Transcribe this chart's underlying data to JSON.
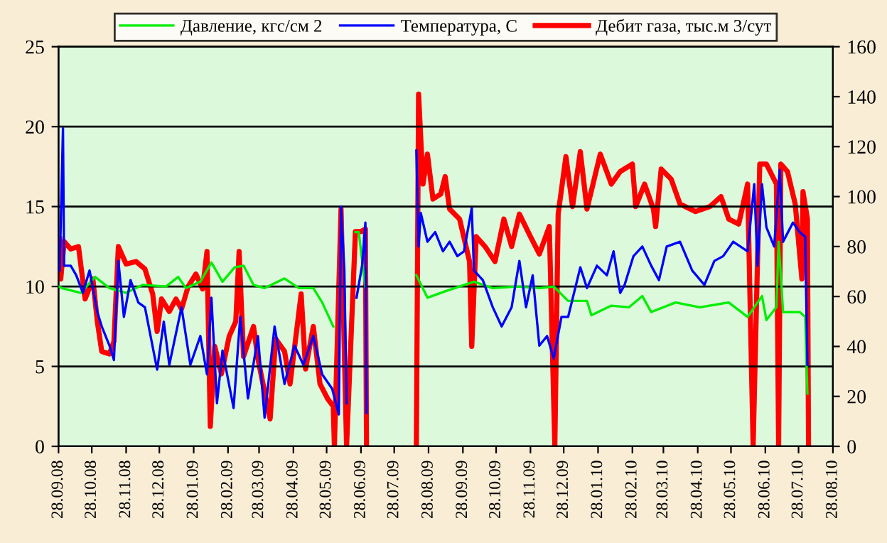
{
  "chart_data": {
    "type": "line",
    "legend": "top",
    "grid": "y",
    "marker": "none",
    "line_style": "solid",
    "xlim": [
      "2008-09-28",
      "2010-08-28"
    ],
    "xticks": [
      {
        "value": "2008-09-28",
        "label": "28.09.08"
      },
      {
        "value": "2008-10-28",
        "label": "28.10.08"
      },
      {
        "value": "2008-11-28",
        "label": "28.11.08"
      },
      {
        "value": "2008-12-28",
        "label": "28.12.08"
      },
      {
        "value": "2009-01-28",
        "label": "28.01.09"
      },
      {
        "value": "2009-02-28",
        "label": "28.02.09"
      },
      {
        "value": "2009-03-28",
        "label": "28.03.09"
      },
      {
        "value": "2009-04-28",
        "label": "28.04.09"
      },
      {
        "value": "2009-05-28",
        "label": "28.05.09"
      },
      {
        "value": "2009-06-28",
        "label": "28.06.09"
      },
      {
        "value": "2009-07-28",
        "label": "28.07.09"
      },
      {
        "value": "2009-08-28",
        "label": "28.08.09"
      },
      {
        "value": "2009-09-28",
        "label": "28.09.09"
      },
      {
        "value": "2009-10-28",
        "label": "28.10.09"
      },
      {
        "value": "2009-11-28",
        "label": "28.11.09"
      },
      {
        "value": "2009-12-28",
        "label": "28.12.09"
      },
      {
        "value": "2010-01-28",
        "label": "28.01.10"
      },
      {
        "value": "2010-02-28",
        "label": "28.02.10"
      },
      {
        "value": "2010-03-28",
        "label": "28.03.10"
      },
      {
        "value": "2010-04-28",
        "label": "28.04.10"
      },
      {
        "value": "2010-05-28",
        "label": "28.05.10"
      },
      {
        "value": "2010-06-28",
        "label": "28.06.10"
      },
      {
        "value": "2010-07-28",
        "label": "28.07.10"
      },
      {
        "value": "2010-08-28",
        "label": "28.08.10"
      }
    ],
    "ylim": [
      0,
      25
    ],
    "yticks": [
      0,
      5,
      10,
      15,
      20,
      25
    ],
    "y2lim": [
      0,
      160
    ],
    "y2ticks": [
      0,
      20,
      40,
      60,
      80,
      100,
      120,
      140,
      160
    ],
    "series": [
      {
        "name": "Давление, кгс/см 2",
        "color": "#00ee00",
        "x": [
          "2008-09-28",
          "2008-10-01",
          "2008-10-18",
          "2008-10-31",
          "2008-11-13",
          "2008-11-28",
          "2008-12-13",
          "2009-01-03",
          "2009-01-14",
          "2009-01-21",
          "2009-02-03",
          "2009-02-13",
          "2009-02-23",
          "2009-03-06",
          "2009-03-14",
          "2009-03-23",
          "2009-04-02",
          "2009-04-20",
          "2009-05-03",
          "2009-05-16",
          "2009-05-24",
          "2009-06-03",
          "2009-06-13",
          "2009-06-23",
          "2009-06-26",
          "2009-07-02",
          "2009-07-20",
          "2009-08-17",
          "2009-08-27",
          "2009-09-12",
          "2009-09-25",
          "2009-10-08",
          "2009-10-25",
          "2009-11-16",
          "2009-12-06",
          "2009-12-19",
          "2010-01-01",
          "2010-01-18",
          "2010-01-22",
          "2010-02-09",
          "2010-02-25",
          "2010-03-09",
          "2010-03-17",
          "2010-04-08",
          "2010-04-30",
          "2010-05-26",
          "2010-06-12",
          "2010-06-25",
          "2010-06-29",
          "2010-07-08",
          "2010-07-10",
          "2010-07-12",
          "2010-07-14",
          "2010-07-29",
          "2010-08-03",
          "2010-08-05"
        ],
        "values": [
          10.0,
          9.9,
          9.6,
          10.6,
          9.9,
          9.6,
          10.1,
          10.0,
          10.6,
          9.9,
          10.3,
          11.5,
          10.3,
          11.2,
          11.3,
          10.1,
          9.9,
          10.5,
          9.9,
          9.9,
          9.0,
          7.5,
          null,
          13.4,
          13.4,
          9.9,
          null,
          10.7,
          9.3,
          9.7,
          10.0,
          10.3,
          9.9,
          10.0,
          9.9,
          10.0,
          9.1,
          9.1,
          8.2,
          8.8,
          8.7,
          9.4,
          8.4,
          9.0,
          8.7,
          9.0,
          8.1,
          9.4,
          7.9,
          8.7,
          12.8,
          10.7,
          8.4,
          8.4,
          8.1,
          3.3
        ]
      },
      {
        "name": "Температура, С",
        "color": "#0000ff",
        "x": [
          "2008-09-29",
          "2008-10-02",
          "2008-10-03",
          "2008-10-09",
          "2008-10-14",
          "2008-10-20",
          "2008-10-26",
          "2008-11-02",
          "2008-11-06",
          "2008-11-13",
          "2008-11-17",
          "2008-11-21",
          "2008-11-26",
          "2008-12-02",
          "2008-12-09",
          "2008-12-15",
          "2008-12-26",
          "2009-01-01",
          "2009-01-06",
          "2009-01-17",
          "2009-01-25",
          "2009-02-03",
          "2009-02-09",
          "2009-02-13",
          "2009-02-18",
          "2009-02-23",
          "2009-03-05",
          "2009-03-11",
          "2009-03-18",
          "2009-03-27",
          "2009-04-02",
          "2009-04-11",
          "2009-04-20",
          "2009-04-29",
          "2009-05-07",
          "2009-05-16",
          "2009-05-24",
          "2009-06-02",
          "2009-06-08",
          "2009-06-10",
          "2009-06-13",
          "2009-06-15",
          "2009-06-20",
          "2009-06-24",
          "2009-06-29",
          "2009-07-02",
          "2009-07-03",
          "2009-07-20",
          "2009-08-17",
          "2009-08-19",
          "2009-08-21",
          "2009-08-27",
          "2009-09-03",
          "2009-09-10",
          "2009-09-16",
          "2009-09-23",
          "2009-09-29",
          "2009-10-06",
          "2009-10-08",
          "2009-10-16",
          "2009-10-25",
          "2009-11-02",
          "2009-11-11",
          "2009-11-18",
          "2009-11-24",
          "2009-11-30",
          "2009-12-06",
          "2009-12-13",
          "2009-12-19",
          "2009-12-26",
          "2010-01-01",
          "2010-01-12",
          "2010-01-18",
          "2010-01-27",
          "2010-02-05",
          "2010-02-11",
          "2010-02-17",
          "2010-02-21",
          "2010-03-01",
          "2010-03-09",
          "2010-03-17",
          "2010-03-24",
          "2010-03-31",
          "2010-04-12",
          "2010-04-23",
          "2010-05-04",
          "2010-05-13",
          "2010-05-21",
          "2010-05-30",
          "2010-06-12",
          "2010-06-18",
          "2010-06-21",
          "2010-06-25",
          "2010-06-29",
          "2010-07-06",
          "2010-07-11",
          "2010-07-14",
          "2010-07-23",
          "2010-07-29",
          "2010-08-03",
          "2010-08-05"
        ],
        "values": [
          11.0,
          19.9,
          11.3,
          11.3,
          10.7,
          9.6,
          11.0,
          8.4,
          7.5,
          6.3,
          5.4,
          11.6,
          8.1,
          10.4,
          9.0,
          8.7,
          4.8,
          7.8,
          5.1,
          8.7,
          5.1,
          6.9,
          4.5,
          9.3,
          2.7,
          6.0,
          2.4,
          8.1,
          3.0,
          6.9,
          1.8,
          7.5,
          3.9,
          6.3,
          5.1,
          6.9,
          4.5,
          3.6,
          2.0,
          15.0,
          11.0,
          2.7,
          null,
          9.3,
          11.3,
          14.0,
          2.1,
          null,
          18.5,
          12.5,
          14.6,
          12.8,
          13.4,
          12.2,
          12.8,
          11.9,
          12.2,
          14.9,
          11.0,
          10.4,
          8.7,
          7.5,
          8.7,
          11.6,
          8.7,
          10.7,
          6.3,
          6.9,
          5.5,
          8.1,
          8.1,
          11.2,
          9.9,
          11.3,
          10.7,
          12.2,
          9.6,
          10.1,
          11.9,
          12.5,
          11.3,
          10.4,
          12.5,
          12.8,
          11.0,
          10.1,
          11.6,
          11.9,
          12.8,
          12.2,
          16.4,
          11.3,
          16.4,
          13.7,
          12.5,
          17.3,
          12.8,
          14.0,
          13.4,
          13.1,
          5.1
        ]
      },
      {
        "name": "Дебит газа, тыс.м 3/сут",
        "color": "#ff0000",
        "axis": "y2",
        "x": [
          "2008-09-29",
          "2008-09-30",
          "2008-10-03",
          "2008-10-09",
          "2008-10-16",
          "2008-10-22",
          "2008-10-29",
          "2008-11-02",
          "2008-11-06",
          "2008-11-13",
          "2008-11-17",
          "2008-11-21",
          "2008-11-28",
          "2008-12-07",
          "2008-12-15",
          "2008-12-22",
          "2008-12-26",
          "2008-12-30",
          "2009-01-06",
          "2009-01-12",
          "2009-01-17",
          "2009-01-23",
          "2009-01-30",
          "2009-02-05",
          "2009-02-09",
          "2009-02-12",
          "2009-02-16",
          "2009-02-22",
          "2009-03-01",
          "2009-03-07",
          "2009-03-10",
          "2009-03-14",
          "2009-03-23",
          "2009-03-27",
          "2009-04-07",
          "2009-04-12",
          "2009-04-20",
          "2009-04-25",
          "2009-05-05",
          "2009-05-09",
          "2009-05-16",
          "2009-05-22",
          "2009-05-29",
          "2009-06-03",
          "2009-06-04",
          "2009-06-10",
          "2009-06-15",
          "2009-06-23",
          "2009-06-28",
          "2009-07-02",
          "2009-07-03",
          "2009-07-20",
          "2009-08-17",
          "2009-08-19",
          "2009-08-23",
          "2009-08-27",
          "2009-09-01",
          "2009-09-08",
          "2009-09-12",
          "2009-09-16",
          "2009-09-25",
          "2009-10-04",
          "2009-10-06",
          "2009-10-10",
          "2009-10-18",
          "2009-10-27",
          "2009-11-04",
          "2009-11-11",
          "2009-11-18",
          "2009-11-28",
          "2009-12-06",
          "2009-12-15",
          "2009-12-20",
          "2009-12-23",
          "2009-12-30",
          "2010-01-05",
          "2010-01-12",
          "2010-01-18",
          "2010-01-30",
          "2010-02-09",
          "2010-02-17",
          "2010-02-28",
          "2010-03-03",
          "2010-03-11",
          "2010-03-19",
          "2010-03-21",
          "2010-03-26",
          "2010-04-04",
          "2010-04-12",
          "2010-04-26",
          "2010-05-09",
          "2010-05-19",
          "2010-05-26",
          "2010-06-04",
          "2010-06-12",
          "2010-06-17",
          "2010-06-23",
          "2010-06-29",
          "2010-07-08",
          "2010-07-10",
          "2010-07-12",
          "2010-07-18",
          "2010-07-25",
          "2010-07-31",
          "2010-08-01",
          "2010-08-05",
          "2010-08-06"
        ],
        "values": [
          83,
          67,
          82,
          79,
          80,
          59,
          67,
          50,
          38,
          37,
          42,
          80,
          73,
          74,
          71,
          61,
          46,
          59,
          54,
          59,
          55,
          64,
          69,
          63,
          78,
          8,
          40,
          29,
          44,
          50,
          78,
          36,
          48,
          35,
          11,
          43,
          38,
          25,
          61,
          31,
          48,
          25,
          19,
          16,
          0,
          95,
          0,
          86,
          86,
          87,
          0,
          null,
          0,
          141,
          105,
          117,
          99,
          101,
          108,
          95,
          91,
          74,
          40,
          84,
          80,
          74,
          91,
          80,
          93,
          84,
          77,
          88,
          0,
          93,
          116,
          96,
          118,
          95,
          117,
          105,
          110,
          113,
          96,
          105,
          95,
          88,
          111,
          107,
          97,
          94,
          96,
          100,
          91,
          89,
          105,
          0,
          113,
          113,
          105,
          0,
          113,
          110,
          97,
          67,
          102,
          91,
          0
        ]
      }
    ]
  }
}
